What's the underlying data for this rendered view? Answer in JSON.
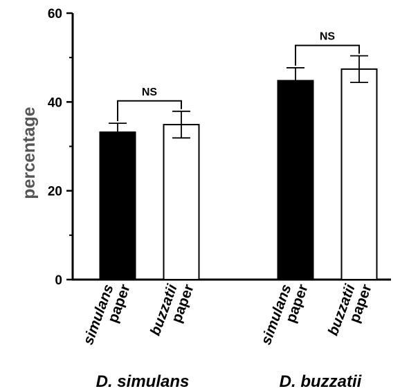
{
  "chart_data": {
    "type": "bar",
    "title": "",
    "xlabel": "",
    "ylabel": "percentage",
    "ylim": [
      0,
      60
    ],
    "yticks": [
      0,
      20,
      40,
      60
    ],
    "grid": false,
    "groups": [
      {
        "name": "D. simulans",
        "comparison": "NS",
        "bars": [
          {
            "label_line1": "simulans",
            "label_line2": "paper",
            "value": 33.2,
            "error": 2.0,
            "fill": "#000000"
          },
          {
            "label_line1": "buzzatii",
            "label_line2": "paper",
            "value": 34.9,
            "error": 3.0,
            "fill": "#ffffff"
          }
        ]
      },
      {
        "name": "D. buzzatii",
        "comparison": "NS",
        "bars": [
          {
            "label_line1": "simulans",
            "label_line2": "paper",
            "value": 44.8,
            "error": 2.9,
            "fill": "#000000"
          },
          {
            "label_line1": "buzzatii",
            "label_line2": "paper",
            "value": 47.4,
            "error": 3.0,
            "fill": "#ffffff"
          }
        ]
      }
    ]
  }
}
